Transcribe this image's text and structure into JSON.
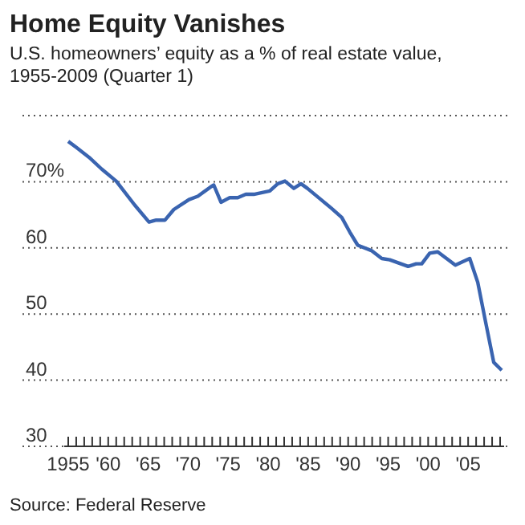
{
  "chart_data": {
    "type": "line",
    "title": "Home Equity Vanishes",
    "subtitle": "U.S. homeowners’ equity as a % of real estate value, 1955-2009 (Quarter 1)",
    "annotations": [
      "Source: Federal Reserve"
    ],
    "x": [
      1955,
      1956,
      1957.6,
      1959.2,
      1961,
      1963.3,
      1965.1,
      1966,
      1967.1,
      1968.2,
      1970.1,
      1971.2,
      1972.9,
      1973.2,
      1974.1,
      1975.2,
      1976.2,
      1977.2,
      1978.2,
      1980.2,
      1981.2,
      1982.1,
      1983.2,
      1984.1,
      1984.9,
      1986.6,
      1987.9,
      1989.2,
      1990.2,
      1991.2,
      1992.9,
      1994.2,
      1995.2,
      1997.5,
      1998.5,
      1999.2,
      2000.2,
      2001.2,
      2003.4,
      2005.2,
      2006.2,
      2007.2,
      2008.2,
      2009.2
    ],
    "series": [
      {
        "color": "#3a64b0",
        "values": [
          76.1,
          75.2,
          73.7,
          71.9,
          70.1,
          66.5,
          63.9,
          64.2,
          64.2,
          65.8,
          67.3,
          67.8,
          69.3,
          69.5,
          66.9,
          67.6,
          67.6,
          68.1,
          68.1,
          68.6,
          69.7,
          70.1,
          69.0,
          69.7,
          69.0,
          67.3,
          66.0,
          64.6,
          62.4,
          60.4,
          59.6,
          58.4,
          58.2,
          57.2,
          57.6,
          57.6,
          59.2,
          59.4,
          57.4,
          58.4,
          54.8,
          48.7,
          42.7,
          41.5
        ]
      }
    ],
    "xlim": [
      1954.5,
      2009.5
    ],
    "xticks": [
      {
        "value": 1955,
        "label": "1955"
      },
      {
        "value": 1956,
        "label": null
      },
      {
        "value": 1957,
        "label": null
      },
      {
        "value": 1958,
        "label": null
      },
      {
        "value": 1959,
        "label": null
      },
      {
        "value": 1960,
        "label": "'60"
      },
      {
        "value": 1961,
        "label": null
      },
      {
        "value": 1962,
        "label": null
      },
      {
        "value": 1963,
        "label": null
      },
      {
        "value": 1964,
        "label": null
      },
      {
        "value": 1965,
        "label": "'65"
      },
      {
        "value": 1966,
        "label": null
      },
      {
        "value": 1967,
        "label": null
      },
      {
        "value": 1968,
        "label": null
      },
      {
        "value": 1969,
        "label": null
      },
      {
        "value": 1970,
        "label": "'70"
      },
      {
        "value": 1971,
        "label": null
      },
      {
        "value": 1972,
        "label": null
      },
      {
        "value": 1973,
        "label": null
      },
      {
        "value": 1974,
        "label": null
      },
      {
        "value": 1975,
        "label": "'75"
      },
      {
        "value": 1976,
        "label": null
      },
      {
        "value": 1977,
        "label": null
      },
      {
        "value": 1978,
        "label": null
      },
      {
        "value": 1979,
        "label": null
      },
      {
        "value": 1980,
        "label": "'80"
      },
      {
        "value": 1981,
        "label": null
      },
      {
        "value": 1982,
        "label": null
      },
      {
        "value": 1983,
        "label": null
      },
      {
        "value": 1984,
        "label": null
      },
      {
        "value": 1985,
        "label": "'85"
      },
      {
        "value": 1986,
        "label": null
      },
      {
        "value": 1987,
        "label": null
      },
      {
        "value": 1988,
        "label": null
      },
      {
        "value": 1989,
        "label": null
      },
      {
        "value": 1990,
        "label": "'90"
      },
      {
        "value": 1991,
        "label": null
      },
      {
        "value": 1992,
        "label": null
      },
      {
        "value": 1993,
        "label": null
      },
      {
        "value": 1994,
        "label": null
      },
      {
        "value": 1995,
        "label": "'95"
      },
      {
        "value": 1996,
        "label": null
      },
      {
        "value": 1997,
        "label": null
      },
      {
        "value": 1998,
        "label": null
      },
      {
        "value": 1999,
        "label": null
      },
      {
        "value": 2000,
        "label": "'00"
      },
      {
        "value": 2001,
        "label": null
      },
      {
        "value": 2002,
        "label": null
      },
      {
        "value": 2003,
        "label": null
      },
      {
        "value": 2004,
        "label": null
      },
      {
        "value": 2005,
        "label": "'05"
      },
      {
        "value": 2006,
        "label": null
      },
      {
        "value": 2007,
        "label": null
      },
      {
        "value": 2008,
        "label": null
      },
      {
        "value": 2009,
        "label": null
      }
    ],
    "ylim": [
      30,
      80
    ],
    "yticks": [
      30,
      40,
      50,
      60,
      {
        "value": 70,
        "label": "70%"
      },
      {
        "value": 80,
        "label": null
      }
    ],
    "grid": "y",
    "line_style": "solid",
    "marker": "none"
  }
}
